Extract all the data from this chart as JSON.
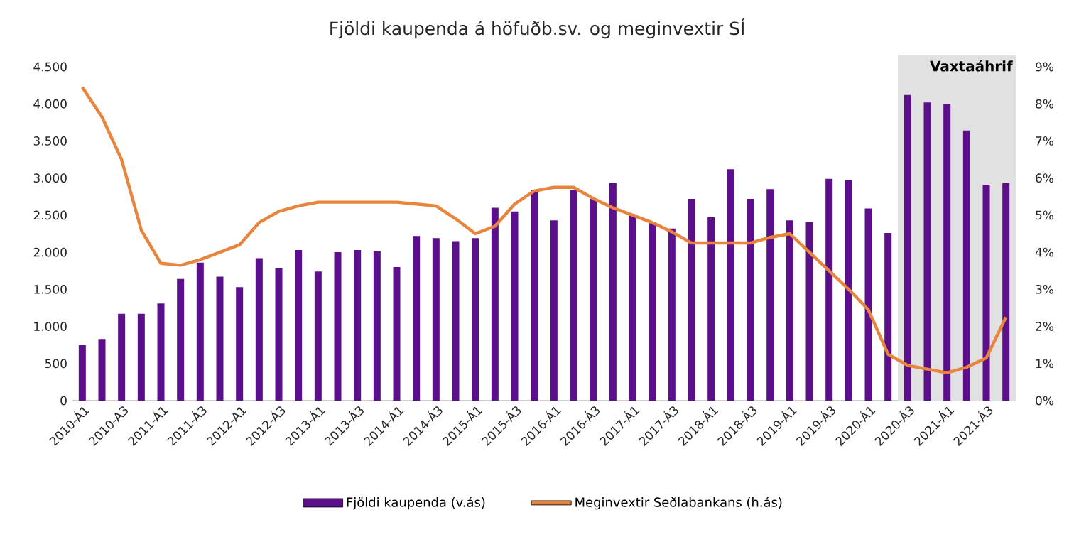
{
  "chart_data": {
    "type": "bar",
    "title": "Fjöldi kaupenda á höfuðb.sv. og meginvextir SÍ",
    "categories": [
      "2010-Á1",
      null,
      "2010-Á3",
      null,
      "2011-Á1",
      null,
      "2011-Á3",
      null,
      "2012-Á1",
      null,
      "2012-Á3",
      null,
      "2013-Á1",
      null,
      "2013-Á3",
      null,
      "2014-Á1",
      null,
      "2014-Á3",
      null,
      "2015-Á1",
      null,
      "2015-Á3",
      null,
      "2016-Á1",
      null,
      "2016-Á3",
      null,
      "2017-Á1",
      null,
      "2017-Á3",
      null,
      "2018-Á1",
      null,
      "2018-Á3",
      null,
      "2019-Á1",
      null,
      "2019-Á3",
      null,
      "2020-Á1",
      null,
      "2020-Á3",
      null,
      "2021-Á1",
      null,
      "2021-Á3",
      null
    ],
    "series": [
      {
        "name": "Fjöldi kaupenda (v.ás)",
        "color": "#5c0f8b",
        "values": [
          750,
          830,
          1170,
          1170,
          1310,
          1640,
          1860,
          1670,
          1530,
          1920,
          1780,
          2030,
          1740,
          2000,
          2030,
          2010,
          1800,
          2220,
          2190,
          2150,
          2190,
          2600,
          2550,
          2840,
          2430,
          2840,
          2720,
          2930,
          2510,
          2400,
          2320,
          2720,
          2470,
          3120,
          2720,
          2850,
          2430,
          2410,
          2990,
          2970,
          2590,
          2260,
          4120,
          4020,
          4000,
          3640,
          2910,
          2930
        ]
      },
      {
        "name": "Meginvextir Seðlabankans (h.ás)",
        "type": "line",
        "axis": "y2",
        "color": "#e8843c",
        "values": [
          8.45,
          7.65,
          6.5,
          4.6,
          3.7,
          3.65,
          3.8,
          4.0,
          4.2,
          4.8,
          5.1,
          5.25,
          5.35,
          5.35,
          5.35,
          5.35,
          5.35,
          5.3,
          5.25,
          4.9,
          4.5,
          4.7,
          5.3,
          5.65,
          5.75,
          5.75,
          5.45,
          5.2,
          5.0,
          4.8,
          4.55,
          4.25,
          4.25,
          4.25,
          4.25,
          4.4,
          4.5,
          4.0,
          3.5,
          3.0,
          2.45,
          1.25,
          0.95,
          0.85,
          0.75,
          0.9,
          1.15,
          2.25
        ]
      }
    ],
    "ylim": [
      0,
      4500
    ],
    "yticks": [
      0,
      500,
      {
        "value": 1000,
        "label": "1.000"
      },
      {
        "value": 1500,
        "label": "1.500"
      },
      {
        "value": 2000,
        "label": "2.000"
      },
      {
        "value": 2500,
        "label": "2.500"
      },
      {
        "value": 3000,
        "label": "3.000"
      },
      {
        "value": 3500,
        "label": "3.500"
      },
      {
        "value": 4000,
        "label": "4.000"
      },
      {
        "value": 4500,
        "label": "4.500"
      }
    ],
    "y2lim": [
      0,
      9
    ],
    "y2ticks": [
      {
        "value": 0,
        "label": "0%"
      },
      {
        "value": 1,
        "label": "1%"
      },
      {
        "value": 2,
        "label": "2%"
      },
      {
        "value": 3,
        "label": "3%"
      },
      {
        "value": 4,
        "label": "4%"
      },
      {
        "value": 5,
        "label": "5%"
      },
      {
        "value": 6,
        "label": "6%"
      },
      {
        "value": 7,
        "label": "7%"
      },
      {
        "value": 8,
        "label": "8%"
      },
      {
        "value": 9,
        "label": "9%"
      }
    ],
    "annotations": [
      "Vaxtaáhrif"
    ],
    "legend": "bottom"
  }
}
